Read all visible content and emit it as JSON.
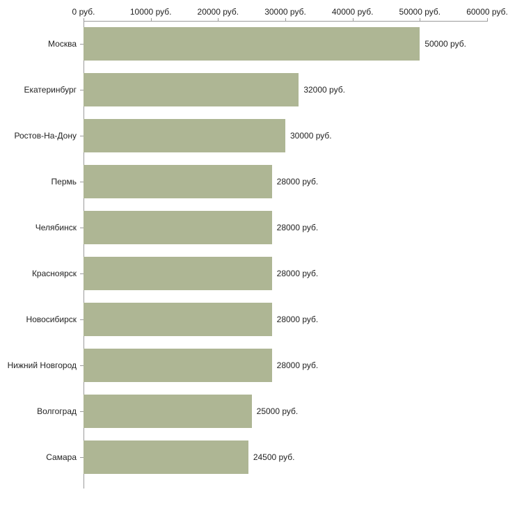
{
  "chart_data": {
    "type": "bar",
    "orientation": "horizontal",
    "title": "",
    "xlabel": "",
    "ylabel": "",
    "xlim": [
      0,
      60000
    ],
    "grid": false,
    "legend": false,
    "bar_color": "#aeb694",
    "axis_color": "#9a9a9a",
    "categories": [
      "Москва",
      "Екатеринбург",
      "Ростов-На-Дону",
      "Пермь",
      "Челябинск",
      "Красноярск",
      "Новосибирск",
      "Нижний Новгород",
      "Волгоград",
      "Самара"
    ],
    "values": [
      50000,
      32000,
      30000,
      28000,
      28000,
      28000,
      28000,
      28000,
      25000,
      24500
    ],
    "value_labels": [
      "50000 руб.",
      "32000 руб.",
      "30000 руб.",
      "28000 руб.",
      "28000 руб.",
      "28000 руб.",
      "28000 руб.",
      "28000 руб.",
      "25000 руб.",
      "24500 руб."
    ],
    "x_ticks": [
      0,
      10000,
      20000,
      30000,
      40000,
      50000,
      60000
    ],
    "x_tick_labels": [
      "0 руб.",
      "10000 руб.",
      "20000 руб.",
      "30000 руб.",
      "40000 руб.",
      "50000 руб.",
      "60000 руб."
    ]
  }
}
